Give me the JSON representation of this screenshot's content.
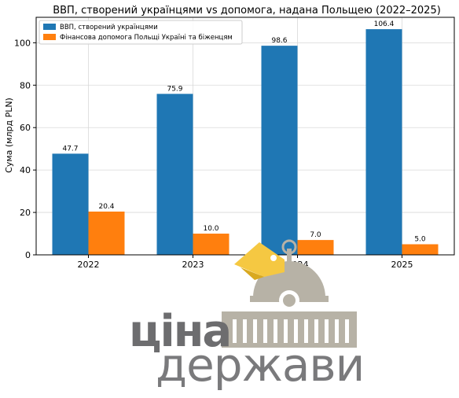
{
  "chart_data": {
    "type": "bar",
    "title": "ВВП, створений українцями vs допомога, надана Польщею (2022–2025)",
    "xlabel": "",
    "ylabel": "Сума (млрд PLN)",
    "categories": [
      "2022",
      "2023",
      "2024",
      "2025"
    ],
    "series": [
      {
        "name": "ВВП, створений українцями",
        "color": "#1f77b4",
        "values": [
          47.7,
          75.9,
          98.6,
          106.4
        ],
        "labels": [
          "47.7",
          "75.9",
          "98.6",
          "106.4"
        ]
      },
      {
        "name": "Фінансова допомога Польщі Україні та біженцям",
        "color": "#ff7f0e",
        "values": [
          20.4,
          10.0,
          7.0,
          5.0
        ],
        "labels": [
          "20.4",
          "10.0",
          "7.0",
          "5.0"
        ]
      }
    ],
    "ylim": [
      0,
      112
    ],
    "yticks": [
      0,
      20,
      40,
      60,
      80,
      100
    ],
    "ytick_labels": [
      "0",
      "20",
      "40",
      "60",
      "80",
      "100"
    ],
    "grid": true,
    "legend_position": "top-left"
  },
  "watermark": {
    "line1": "ціна",
    "line2": "держави",
    "icon": "government-building-with-price-tag-icon",
    "colors": {
      "dark": "#6d6d6f",
      "building": "#b7b2a6",
      "tag": "#f5c842"
    }
  }
}
